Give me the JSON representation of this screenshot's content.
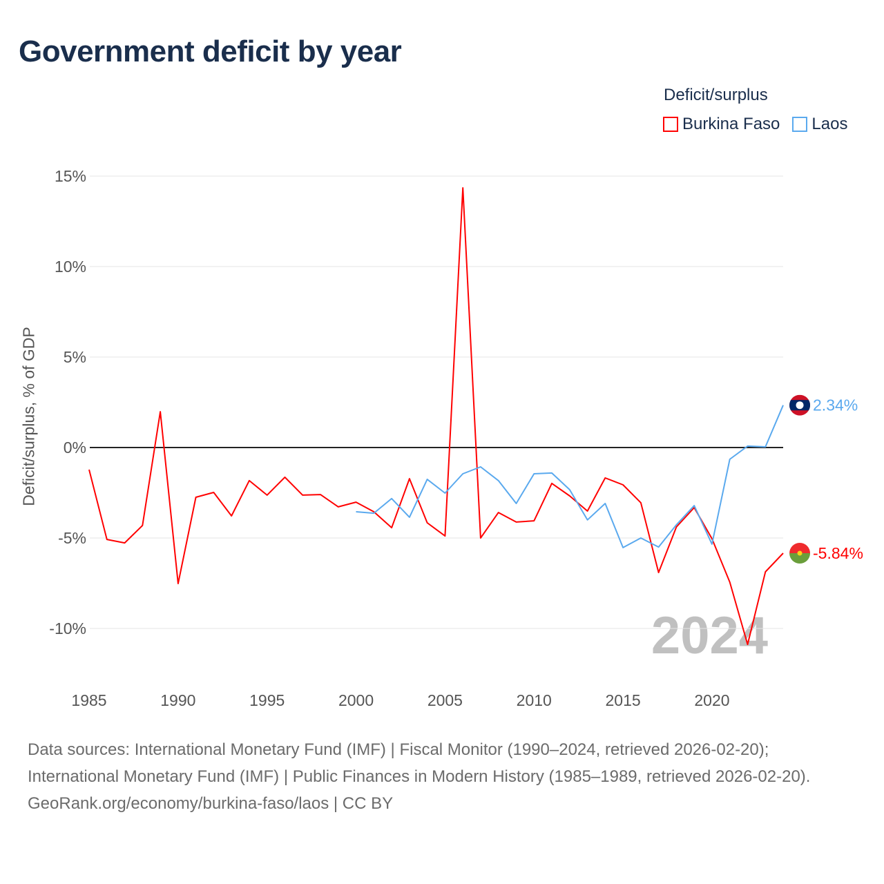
{
  "title": "Government deficit by year",
  "legend": {
    "title": "Deficit/surplus",
    "items": [
      {
        "label": "Burkina Faso",
        "color": "#ff0000"
      },
      {
        "label": "Laos",
        "color": "#5aa9ee"
      }
    ]
  },
  "footer": {
    "sources": "Data sources: International Monetary Fund (IMF) | Fiscal Monitor (1990–2024, retrieved 2026-02-20); International Monetary Fund (IMF) | Public Finances in Modern History (1985–1989, retrieved 2026-02-20).",
    "credit": "GeoRank.org/economy/burkina-faso/laos | CC BY"
  },
  "chart_data": {
    "type": "line",
    "title": "Government deficit by year",
    "xlabel": "",
    "ylabel": "Deficit/surplus, % of GDP",
    "xlim": [
      1985,
      2024
    ],
    "ylim": [
      -12,
      16
    ],
    "x_ticks": [
      1985,
      1990,
      1995,
      2000,
      2005,
      2010,
      2015,
      2020
    ],
    "x_tick_labels": [
      "1985",
      "1990",
      "1995",
      "2000",
      "2005",
      "2010",
      "2015",
      "2020"
    ],
    "y_ticks": [
      15,
      10,
      5,
      0,
      -5,
      -10
    ],
    "y_tick_labels": [
      "15%",
      "10%",
      "5%",
      "0%",
      "-5%",
      "-10%"
    ],
    "grid": true,
    "legend_position": "top-right",
    "year_watermark": "2024",
    "series": [
      {
        "name": "Burkina Faso",
        "color": "#ff0000",
        "end_label": "-5.84%",
        "x": [
          1985,
          1986,
          1987,
          1988,
          1989,
          1990,
          1991,
          1992,
          1993,
          1994,
          1995,
          1996,
          1997,
          1998,
          1999,
          2000,
          2001,
          2002,
          2003,
          2004,
          2005,
          2006,
          2007,
          2008,
          2009,
          2010,
          2011,
          2012,
          2013,
          2014,
          2015,
          2016,
          2017,
          2018,
          2019,
          2020,
          2021,
          2022,
          2023,
          2024
        ],
        "values": [
          -1.22,
          -5.08,
          -5.27,
          -4.31,
          1.98,
          -7.52,
          -2.75,
          -2.48,
          -3.78,
          -1.83,
          -2.63,
          -1.64,
          -2.63,
          -2.6,
          -3.28,
          -3.02,
          -3.55,
          -4.43,
          -1.72,
          -4.16,
          -4.89,
          14.35,
          -5.0,
          -3.59,
          -4.12,
          -4.05,
          -1.98,
          -2.67,
          -3.51,
          -1.68,
          -2.06,
          -3.05,
          -6.91,
          -4.39,
          -3.32,
          -5.04,
          -7.44,
          -10.88,
          -6.87,
          -5.84
        ]
      },
      {
        "name": "Laos",
        "color": "#5aa9ee",
        "end_label": "2.34%",
        "x": [
          2000,
          2001,
          2002,
          2003,
          2004,
          2005,
          2006,
          2007,
          2008,
          2009,
          2010,
          2011,
          2012,
          2013,
          2014,
          2015,
          2016,
          2017,
          2018,
          2019,
          2020,
          2021,
          2022,
          2023,
          2024
        ],
        "values": [
          -3.55,
          -3.63,
          -2.82,
          -3.85,
          -1.76,
          -2.52,
          -1.45,
          -1.07,
          -1.83,
          -3.09,
          -1.45,
          -1.41,
          -2.33,
          -4.0,
          -3.09,
          -5.53,
          -5.0,
          -5.5,
          -4.27,
          -3.21,
          -5.34,
          -0.65,
          0.08,
          0.04,
          2.34
        ]
      }
    ]
  }
}
